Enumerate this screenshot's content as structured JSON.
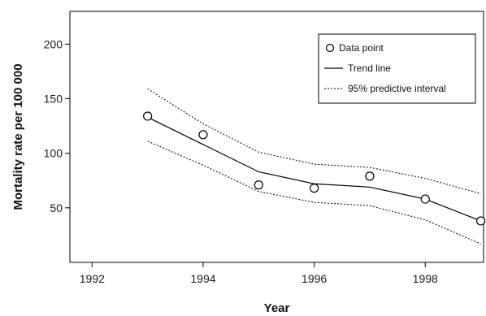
{
  "chart_data": {
    "type": "line",
    "title": "",
    "xlabel": "Year",
    "ylabel": "Mortality rate per 100 000",
    "xlim": [
      1991.6,
      1999.05
    ],
    "ylim": [
      0,
      230
    ],
    "x_ticks": [
      1992,
      1994,
      1996,
      1998
    ],
    "y_ticks": [
      50,
      100,
      150,
      200
    ],
    "grid": false,
    "legend_position": "top-right",
    "series": [
      {
        "name": "Data point",
        "kind": "scatter",
        "marker": "open-circle",
        "x": [
          1993,
          1994,
          1995,
          1996,
          1997,
          1998,
          1999
        ],
        "y": [
          134,
          117,
          71,
          68,
          79,
          58,
          38
        ]
      },
      {
        "name": "Trend line",
        "kind": "line",
        "style": "solid",
        "x": [
          1993,
          1994,
          1995,
          1996,
          1997,
          1998,
          1999
        ],
        "y": [
          133,
          108,
          83,
          72,
          69,
          58,
          38
        ]
      },
      {
        "name": "95% predictive interval",
        "kind": "line",
        "style": "dotted",
        "bounds": {
          "upper": {
            "x": [
              1993,
              1994,
              1995,
              1996,
              1997,
              1998,
              1999
            ],
            "y": [
              159,
              127,
              101,
              90,
              87,
              77,
              63
            ]
          },
          "lower": {
            "x": [
              1993,
              1994,
              1995,
              1996,
              1997,
              1998,
              1999
            ],
            "y": [
              111,
              89,
              65,
              55,
              52,
              39,
              17
            ]
          }
        }
      }
    ]
  }
}
